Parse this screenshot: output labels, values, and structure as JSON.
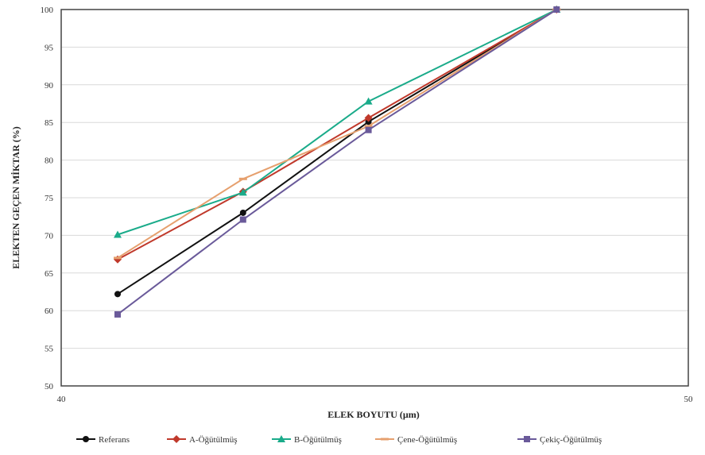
{
  "chart_data": {
    "type": "line",
    "title": "",
    "xlabel": "ELEK BOYUTU  (µm)",
    "ylabel": "ELEKTEN GEÇEN MİKTAR (%)",
    "xlim": [
      40,
      50
    ],
    "ylim": [
      50,
      100
    ],
    "x_ticks": [
      "40",
      "50"
    ],
    "y_ticks": [
      50,
      55,
      60,
      65,
      70,
      75,
      80,
      85,
      90,
      95,
      100
    ],
    "grid": "horizontal",
    "legend_position": "bottom",
    "x": [
      40.9,
      42.9,
      44.9,
      47.9
    ],
    "series": [
      {
        "name": "Referans",
        "color": "#111111",
        "marker": "circle",
        "values": [
          62.2,
          73.0,
          85.1,
          100
        ]
      },
      {
        "name": "A-Öğütülmüş",
        "color": "#c0392b",
        "marker": "diamond",
        "values": [
          66.8,
          75.8,
          85.6,
          100
        ]
      },
      {
        "name": "B-Öğütülmüş",
        "color": "#1aab8a",
        "marker": "triangle",
        "values": [
          70.1,
          75.7,
          87.8,
          100
        ]
      },
      {
        "name": "Çene-Öğütülmüş",
        "color": "#e6a06e",
        "marker": "dash",
        "values": [
          67.0,
          77.5,
          84.5,
          100
        ]
      },
      {
        "name": "Çekiç-Öğütülmüş",
        "color": "#6a5a9a",
        "marker": "square",
        "values": [
          59.5,
          72.1,
          84.0,
          100
        ]
      }
    ]
  }
}
